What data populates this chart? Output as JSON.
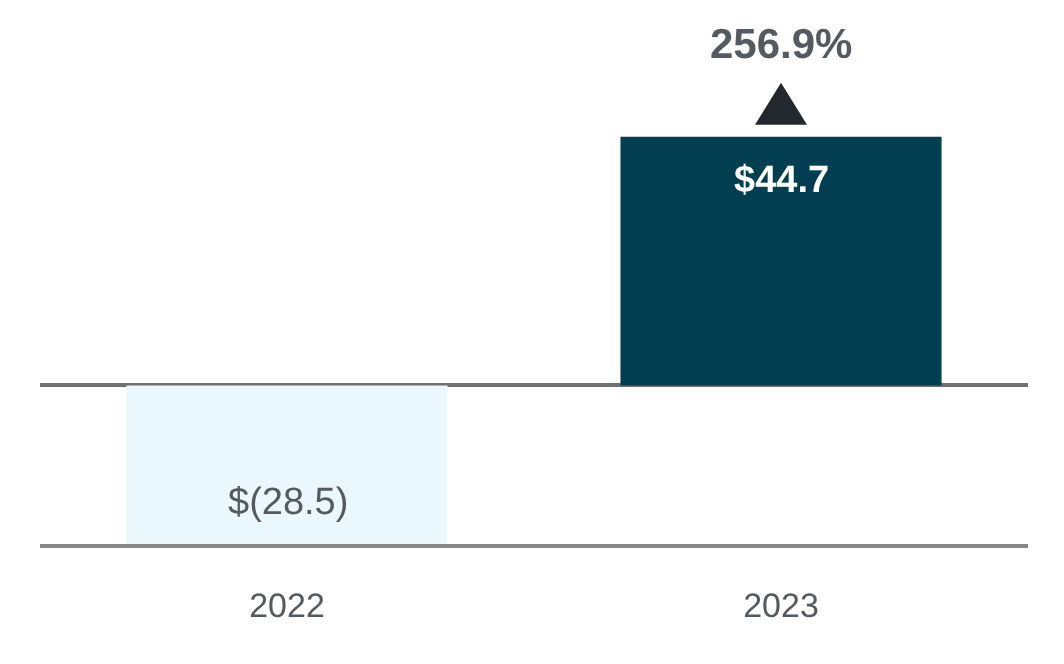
{
  "chart_data": {
    "type": "bar",
    "categories": [
      "2022",
      "2023"
    ],
    "values": [
      -28.5,
      44.7
    ],
    "colors": [
      "#eaf8fd",
      "#023e52"
    ],
    "value_labels": [
      "$(28.5)",
      "$44.7"
    ],
    "annotations": [
      {
        "text": "256.9%",
        "x": "2023",
        "y": 44.7
      }
    ],
    "grid": false
  }
}
